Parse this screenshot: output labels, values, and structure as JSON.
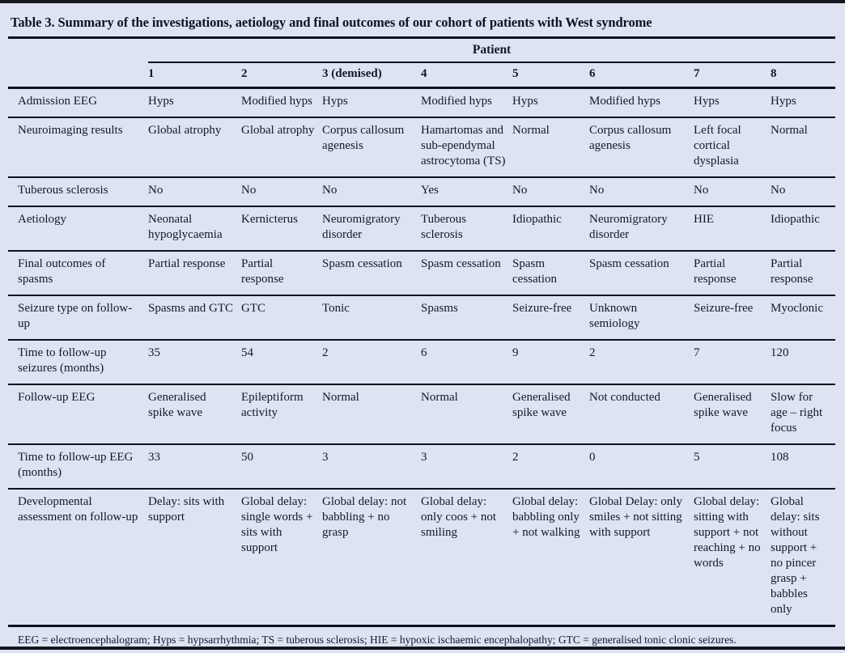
{
  "title": "Table 3. Summary of the investigations, aetiology and final outcomes of our cohort of patients with West syndrome",
  "table": {
    "group_header": "Patient",
    "columns": [
      "1",
      "2",
      "3 (demised)",
      "4",
      "5",
      "6",
      "7",
      "8"
    ],
    "rows": [
      {
        "label": "Admission EEG",
        "cells": [
          "Hyps",
          "Modified hyps",
          "Hyps",
          "Modified hyps",
          "Hyps",
          "Modified hyps",
          "Hyps",
          "Hyps"
        ]
      },
      {
        "label": "Neuroimaging results",
        "cells": [
          "Global atrophy",
          "Global atrophy",
          "Corpus callosum agenesis",
          "Hamartomas and sub-ependymal astrocytoma (TS)",
          "Normal",
          "Corpus callosum agenesis",
          "Left focal cortical dysplasia",
          "Normal"
        ]
      },
      {
        "label": "Tuberous sclerosis",
        "cells": [
          "No",
          "No",
          "No",
          "Yes",
          "No",
          "No",
          "No",
          "No"
        ]
      },
      {
        "label": "Aetiology",
        "cells": [
          "Neonatal hypoglycaemia",
          "Kernicterus",
          "Neuromigratory disorder",
          "Tuberous sclerosis",
          "Idiopathic",
          "Neuromigratory disorder",
          "HIE",
          "Idiopathic"
        ]
      },
      {
        "label": "Final outcomes of spasms",
        "cells": [
          "Partial response",
          "Partial response",
          "Spasm cessation",
          "Spasm cessation",
          "Spasm cessation",
          "Spasm cessation",
          "Partial response",
          "Partial response"
        ]
      },
      {
        "label": "Seizure type on follow-up",
        "cells": [
          "Spasms and GTC",
          "GTC",
          "Tonic",
          "Spasms",
          "Seizure-free",
          "Unknown semiology",
          "Seizure-free",
          "Myoclonic"
        ]
      },
      {
        "label": "Time to follow-up seizures (months)",
        "cells": [
          "35",
          "54",
          "2",
          "6",
          "9",
          "2",
          "7",
          "120"
        ]
      },
      {
        "label": "Follow-up EEG",
        "cells": [
          "Generalised spike wave",
          "Epileptiform activity",
          "Normal",
          "Normal",
          "Generalised spike wave",
          "Not conducted",
          "Generalised spike wave",
          "Slow for age – right focus"
        ]
      },
      {
        "label": "Time to follow-up EEG (months)",
        "cells": [
          "33",
          "50",
          "3",
          "3",
          "2",
          "0",
          "5",
          "108"
        ]
      },
      {
        "label": "Developmental assessment on follow-up",
        "cells": [
          "Delay: sits with support",
          "Global delay: single words + sits with support",
          "Global delay: not babbling + no grasp",
          "Global delay: only coos + not smiling",
          "Global delay: babbling only + not walking",
          "Global Delay: only smiles + not sitting with support",
          "Global delay: sitting with support + not reaching + no words",
          "Global delay: sits without support + no pincer grasp + babbles only"
        ]
      }
    ]
  },
  "footnote": "EEG = electroencephalogram; Hyps = hypsarrhythmia; TS = tuberous sclerosis; HIE = hypoxic ischaemic encephalopathy; GTC = generalised tonic clonic seizures.",
  "colors": {
    "background": "#dee3f1",
    "text": "#131730",
    "rule": "#0e1020"
  }
}
